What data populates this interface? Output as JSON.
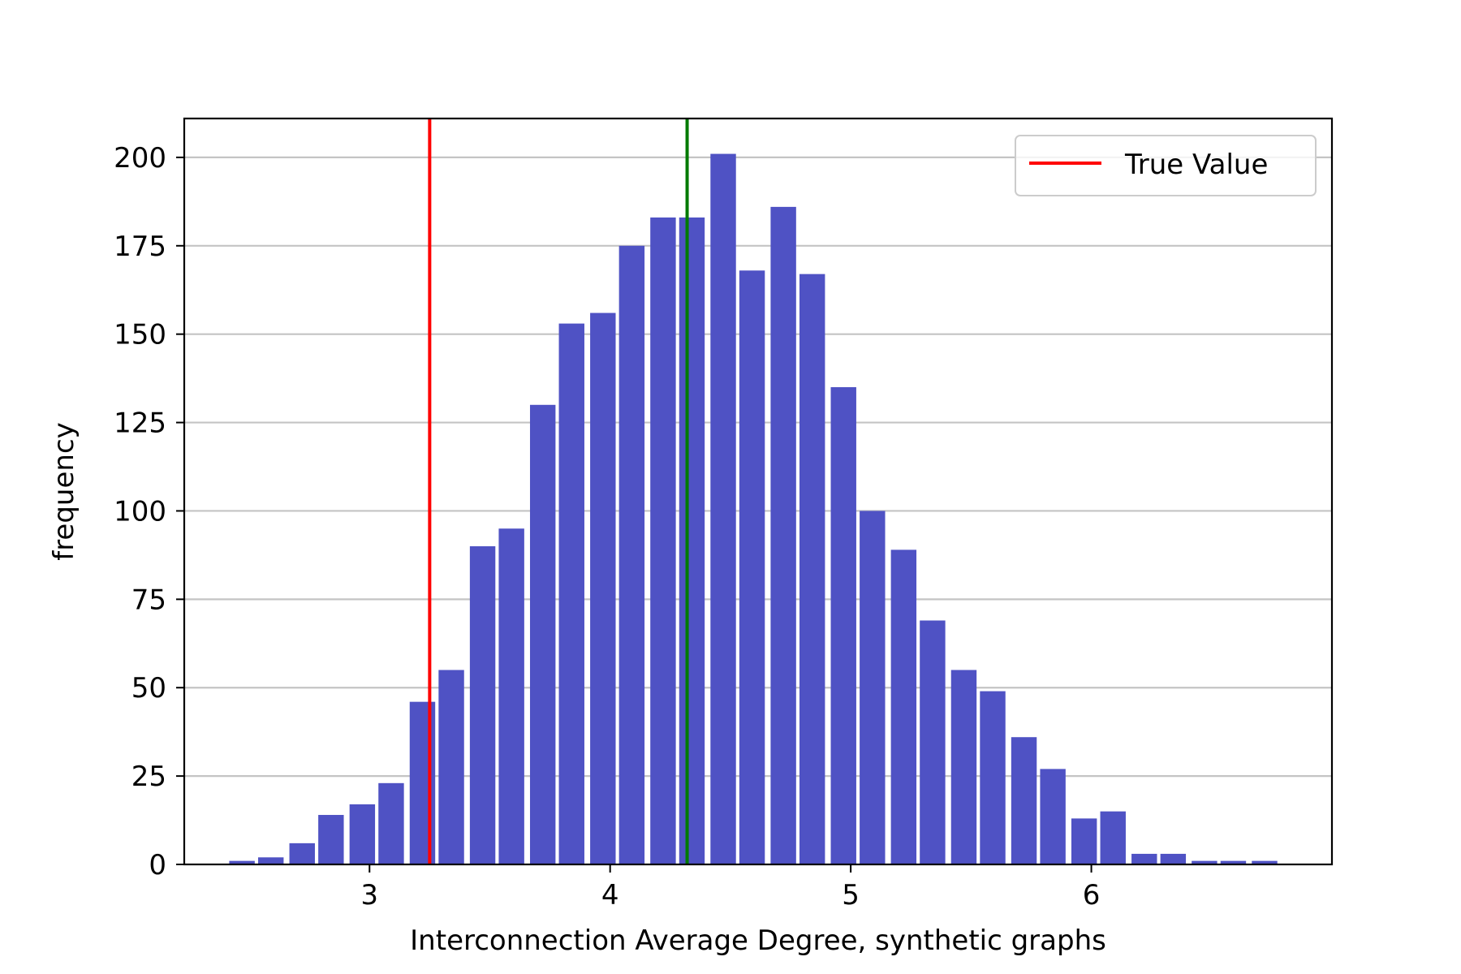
{
  "chart_data": {
    "type": "bar",
    "title": "",
    "xlabel": "Interconnection Average Degree, synthetic graphs",
    "ylabel": "frequency",
    "xlim": [
      2.23,
      7.0
    ],
    "ylim": [
      0,
      211
    ],
    "bin_width": 0.1247,
    "bin_centers": [
      2.47,
      2.59,
      2.72,
      2.84,
      2.97,
      3.09,
      3.22,
      3.34,
      3.47,
      3.59,
      3.72,
      3.84,
      3.97,
      4.09,
      4.22,
      4.34,
      4.47,
      4.59,
      4.72,
      4.84,
      4.97,
      5.09,
      5.22,
      5.34,
      5.47,
      5.59,
      5.72,
      5.84,
      5.97,
      6.09,
      6.22,
      6.34,
      6.47,
      6.59,
      6.72
    ],
    "values": [
      1,
      2,
      6,
      14,
      17,
      23,
      46,
      55,
      90,
      95,
      130,
      153,
      156,
      175,
      183,
      183,
      201,
      168,
      186,
      167,
      135,
      100,
      89,
      69,
      55,
      49,
      36,
      27,
      13,
      15,
      3,
      3,
      1,
      1,
      1
    ],
    "bar_color": "#4f52c4",
    "x_ticks": [
      {
        "value": 3,
        "label": "3"
      },
      {
        "value": 4,
        "label": "4"
      },
      {
        "value": 5,
        "label": "5"
      },
      {
        "value": 6,
        "label": "6"
      }
    ],
    "y_ticks": [
      {
        "value": 0,
        "label": "0"
      },
      {
        "value": 25,
        "label": "25"
      },
      {
        "value": 50,
        "label": "50"
      },
      {
        "value": 75,
        "label": "75"
      },
      {
        "value": 100,
        "label": "100"
      },
      {
        "value": 125,
        "label": "125"
      },
      {
        "value": 150,
        "label": "150"
      },
      {
        "value": 175,
        "label": "175"
      },
      {
        "value": 200,
        "label": "200"
      }
    ],
    "grid": {
      "horizontal": true,
      "vertical": false,
      "color": "#c4c4c4"
    },
    "vlines": [
      {
        "name": "True Value",
        "x": 3.25,
        "color": "#ff0000"
      },
      {
        "x": 4.32,
        "color": "#007a00"
      }
    ],
    "legend": {
      "position": "top-right",
      "entries": [
        {
          "label": "True Value",
          "color": "#ff0000"
        }
      ]
    }
  }
}
